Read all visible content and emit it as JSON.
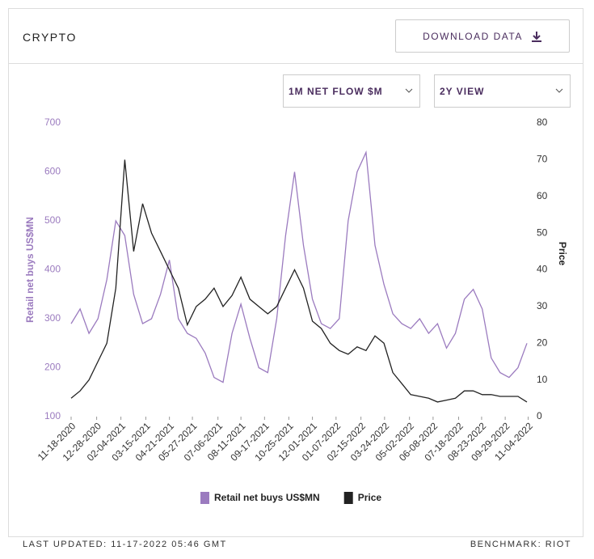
{
  "header": {
    "title": "CRYPTO",
    "download": "DOWNLOAD DATA"
  },
  "controls": {
    "metric": "1M NET FLOW $M",
    "view": "2Y VIEW"
  },
  "footer": {
    "updated": "LAST UPDATED: 11-17-2022 05:46 GMT",
    "benchmark": "BENCHMARK: RIOT"
  },
  "chart_data": {
    "type": "line",
    "y_label": "Retail net buys US$MN",
    "y2_label": "Price",
    "x": [
      "11-18-2020",
      "12-02-2020",
      "12-16-2020",
      "12-30-2020",
      "01-13-2021",
      "01-27-2021",
      "02-10-2021",
      "02-24-2021",
      "03-10-2021",
      "03-24-2021",
      "04-07-2021",
      "04-21-2021",
      "05-05-2021",
      "05-19-2021",
      "06-02-2021",
      "06-16-2021",
      "06-30-2021",
      "07-14-2021",
      "07-28-2021",
      "08-11-2021",
      "08-25-2021",
      "09-08-2021",
      "09-22-2021",
      "10-06-2021",
      "10-20-2021",
      "11-03-2021",
      "11-17-2021",
      "12-01-2021",
      "12-15-2021",
      "12-29-2021",
      "01-12-2022",
      "01-26-2022",
      "02-09-2022",
      "02-23-2022",
      "03-09-2022",
      "03-23-2022",
      "04-06-2022",
      "04-20-2022",
      "05-04-2022",
      "05-18-2022",
      "06-01-2022",
      "06-15-2022",
      "06-29-2022",
      "07-13-2022",
      "07-27-2022",
      "08-10-2022",
      "08-24-2022",
      "09-07-2022",
      "09-21-2022",
      "10-05-2022",
      "10-19-2022",
      "11-02-2022"
    ],
    "xticks": [
      "11-18-2020",
      "12-28-2020",
      "02-04-2021",
      "03-15-2021",
      "04-21-2021",
      "05-27-2021",
      "07-06-2021",
      "08-11-2021",
      "09-17-2021",
      "10-25-2021",
      "12-01-2021",
      "01-07-2022",
      "02-15-2022",
      "03-24-2022",
      "05-02-2022",
      "06-08-2022",
      "07-18-2022",
      "08-23-2022",
      "09-29-2022",
      "11-04-2022"
    ],
    "ylim": [
      100,
      700
    ],
    "yticks": [
      100,
      200,
      300,
      400,
      500,
      600,
      700
    ],
    "y2lim": [
      0,
      80
    ],
    "y2ticks": [
      0,
      10,
      20,
      30,
      40,
      50,
      60,
      70,
      80
    ],
    "legend": "bottom",
    "series": [
      {
        "name": "Retail net buys US$MN",
        "color": "#9b7bbf",
        "values": [
          290,
          320,
          270,
          300,
          380,
          500,
          470,
          350,
          290,
          300,
          350,
          420,
          300,
          270,
          260,
          230,
          180,
          170,
          270,
          330,
          260,
          200,
          190,
          300,
          470,
          600,
          450,
          340,
          290,
          280,
          300,
          500,
          600,
          640,
          450,
          370,
          310,
          290,
          280,
          300,
          270,
          290,
          240,
          270,
          340,
          360,
          320,
          220,
          190,
          180,
          200,
          250
        ]
      },
      {
        "name": "Price",
        "color": "#222222",
        "axis": "y2",
        "values": [
          5,
          7,
          10,
          15,
          20,
          35,
          70,
          45,
          58,
          50,
          45,
          40,
          35,
          25,
          30,
          32,
          35,
          30,
          33,
          38,
          32,
          30,
          28,
          30,
          35,
          40,
          35,
          26,
          24,
          20,
          18,
          17,
          19,
          18,
          22,
          20,
          12,
          9,
          6,
          5.5,
          5,
          4,
          4.5,
          5,
          7,
          7,
          6,
          6,
          5.5,
          5.5,
          5.5,
          4
        ]
      }
    ]
  }
}
